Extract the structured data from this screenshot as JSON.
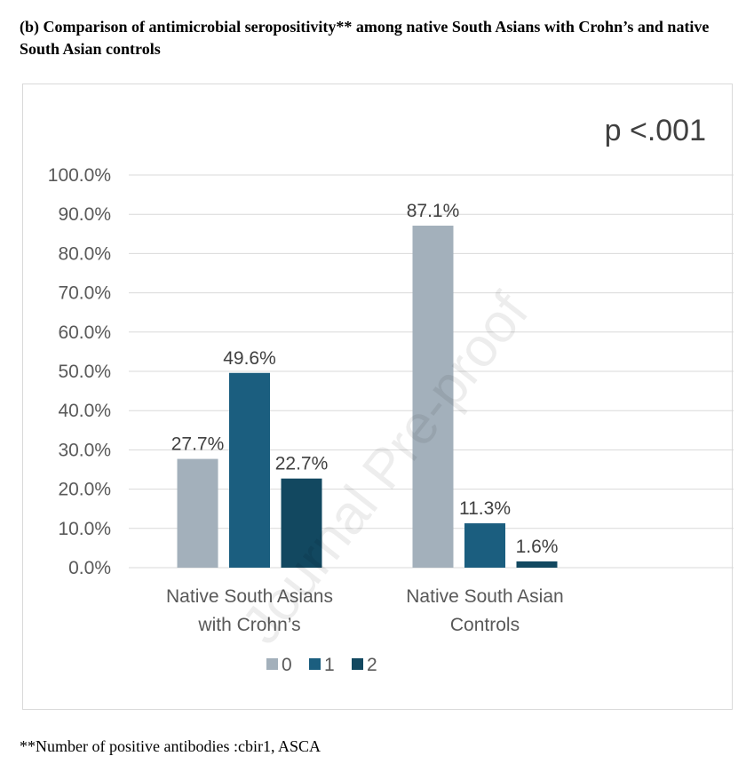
{
  "caption": "(b) Comparison of antimicrobial seropositivity** among native South Asians with Crohn’s and native South Asian controls",
  "footnote": "**Number of positive antibodies :cbir1, ASCA",
  "watermark": "Journal Pre-proof",
  "chart_data": {
    "type": "bar",
    "annotation": "p <.001",
    "categories": [
      [
        "Native South Asians",
        "with Crohn’s"
      ],
      [
        "Native South Asian",
        "Controls"
      ]
    ],
    "series": [
      {
        "name": "0",
        "color": "#a3b0bb",
        "values": [
          27.7,
          87.1
        ],
        "labels": [
          "27.7%",
          "87.1%"
        ]
      },
      {
        "name": "1",
        "color": "#1b5e7f",
        "values": [
          49.6,
          11.3
        ],
        "labels": [
          "49.6%",
          "11.3%"
        ]
      },
      {
        "name": "2",
        "color": "#124860",
        "values": [
          22.7,
          1.6
        ],
        "labels": [
          "22.7%",
          "1.6%"
        ]
      }
    ],
    "yticks": [
      "0.0%",
      "10.0%",
      "20.0%",
      "30.0%",
      "40.0%",
      "50.0%",
      "60.0%",
      "70.0%",
      "80.0%",
      "90.0%",
      "100.0%"
    ],
    "ylim": [
      0,
      100
    ],
    "grid": true,
    "legend_position": "bottom"
  }
}
